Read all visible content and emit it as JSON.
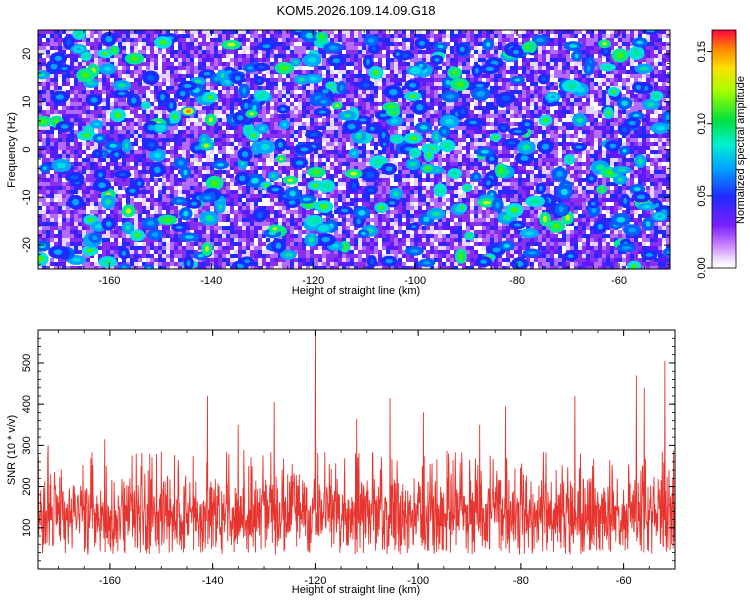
{
  "title": "KOM5.2026.109.14.09.G18",
  "chart_data": [
    {
      "type": "heatmap",
      "title": "KOM5.2026.109.14.09.G18",
      "xlabel": "Height of straight line (km)",
      "ylabel": "Frequency (Hz)",
      "xlim": [
        -174,
        -50
      ],
      "ylim": [
        -25,
        25
      ],
      "xticks": [
        -160,
        -140,
        -120,
        -100,
        -80,
        -60
      ],
      "xtick_labels": [
        "-160",
        "-140",
        "-120",
        "-100",
        "-80",
        "-60"
      ],
      "yticks": [
        -20,
        -10,
        0,
        10,
        20
      ],
      "ytick_labels": [
        "-20",
        "-10",
        "0",
        "10",
        "20"
      ],
      "colorbar": {
        "label": "Normalized spectral amplitude",
        "range": [
          0.0,
          0.165
        ],
        "ticks": [
          0.0,
          0.05,
          0.1,
          0.15
        ],
        "tick_labels": [
          "0.00",
          "0.05",
          "0.10",
          "0.15"
        ],
        "colormap": "rainbow (white-violet-blue-cyan-green-yellow-red)"
      },
      "hotspots": [
        {
          "x": -144.5,
          "y": 8.0,
          "value": 0.15
        },
        {
          "x": -141.0,
          "y": 0.8,
          "value": 0.13
        },
        {
          "x": -97.5,
          "y": -4.0,
          "value": 0.12
        },
        {
          "x": -150.0,
          "y": 4.5,
          "value": 0.1
        },
        {
          "x": -118.0,
          "y": -16.5,
          "value": 0.09
        },
        {
          "x": -100.0,
          "y": 16.5,
          "value": 0.09
        },
        {
          "x": -166.0,
          "y": 21.0,
          "value": 0.08
        },
        {
          "x": -52.0,
          "y": -14.0,
          "value": 0.08
        },
        {
          "x": -73.0,
          "y": 11.0,
          "value": 0.08
        }
      ]
    },
    {
      "type": "line",
      "title": "",
      "xlabel": "Height of straight line (km)",
      "ylabel": "SNR (10 * v/v)",
      "xlim": [
        -174,
        -50
      ],
      "ylim": [
        0,
        580
      ],
      "xticks": [
        -160,
        -140,
        -120,
        -100,
        -80,
        -60
      ],
      "xtick_labels": [
        "-160",
        "-140",
        "-120",
        "-100",
        "-80",
        "-60"
      ],
      "yticks": [
        100,
        200,
        300,
        400,
        500
      ],
      "ytick_labels": [
        "100",
        "200",
        "300",
        "400",
        "500"
      ],
      "series": [
        {
          "name": "SNR",
          "color": "#e8342e",
          "baseline_range": [
            20,
            270
          ],
          "peaks": [
            {
              "x": -120.0,
              "y": 580
            },
            {
              "x": -52.0,
              "y": 505
            },
            {
              "x": -57.5,
              "y": 470
            },
            {
              "x": -141.0,
              "y": 420
            },
            {
              "x": -105.5,
              "y": 415
            },
            {
              "x": -128.0,
              "y": 405
            },
            {
              "x": -69.5,
              "y": 420
            },
            {
              "x": -56.0,
              "y": 440
            },
            {
              "x": -83.0,
              "y": 395
            },
            {
              "x": -99.0,
              "y": 380
            },
            {
              "x": -112.0,
              "y": 365
            },
            {
              "x": -135.0,
              "y": 350
            },
            {
              "x": -88.0,
              "y": 350
            },
            {
              "x": -161.0,
              "y": 315
            },
            {
              "x": -172.0,
              "y": 300
            },
            {
              "x": -150.0,
              "y": 285
            }
          ]
        }
      ]
    }
  ]
}
